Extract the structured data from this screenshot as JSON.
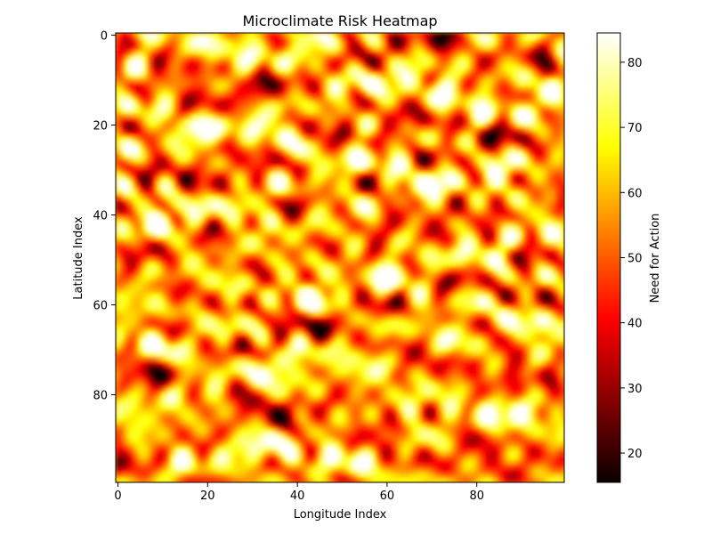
{
  "chart_data": {
    "type": "heatmap",
    "title": "Microclimate Risk Heatmap",
    "xlabel": "Longitude Index",
    "ylabel": "Latitude Index",
    "rows": 100,
    "cols": 100,
    "xlim": [
      -0.5,
      99.5
    ],
    "ylim": [
      99.5,
      -0.5
    ],
    "x_ticks": [
      0,
      20,
      40,
      60,
      80
    ],
    "y_ticks": [
      0,
      20,
      40,
      60,
      80
    ],
    "colormap": "hot",
    "colorbar": {
      "label": "Need for Action",
      "range": [
        15.5,
        84.5
      ],
      "ticks": [
        20,
        30,
        40,
        50,
        60,
        70,
        80
      ]
    },
    "value_summary": {
      "min": 15.5,
      "max": 84.5,
      "typical": [
        35,
        75
      ]
    },
    "grid": false
  }
}
